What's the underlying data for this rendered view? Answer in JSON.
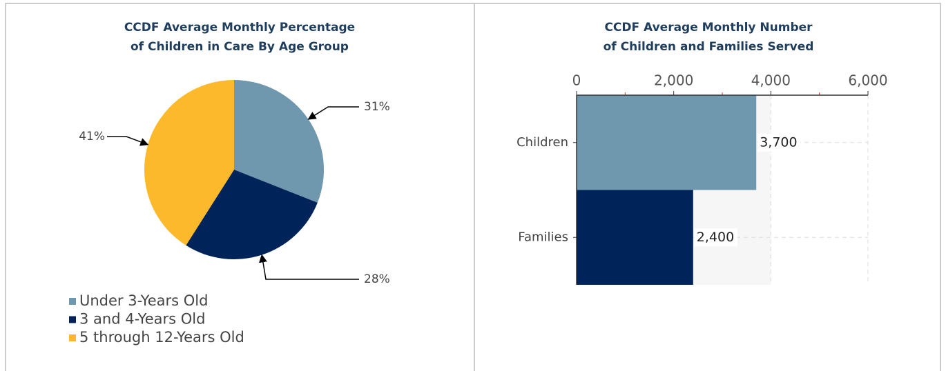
{
  "chart_data": [
    {
      "type": "pie",
      "title": [
        "CCDF Average Monthly Percentage",
        "of Children in Care By Age Group"
      ],
      "categories": [
        "Under 3-Years Old",
        "3 and 4-Years Old",
        "5 through 12-Years Old"
      ],
      "values": [
        31,
        28,
        41
      ],
      "value_labels": [
        "31%",
        "28%",
        "41%"
      ],
      "colors": [
        "#6f97ad",
        "#00245a",
        "#fdb92c"
      ],
      "legend": "bottom"
    },
    {
      "type": "barh",
      "title": [
        "CCDF Average Monthly Number",
        "of Children and Families Served"
      ],
      "categories": [
        "Children",
        "Families"
      ],
      "values": [
        3700,
        2400
      ],
      "value_labels": [
        "3,700",
        "2,400"
      ],
      "colors": [
        "#6f97ad",
        "#00245a"
      ],
      "xlim": [
        0,
        6000
      ],
      "xticks": [
        0,
        {
          "value": 2000,
          "label": "2,000"
        },
        {
          "value": 4000,
          "label": "4,000"
        },
        {
          "value": 6000,
          "label": "6,000"
        }
      ],
      "grid": true
    }
  ]
}
